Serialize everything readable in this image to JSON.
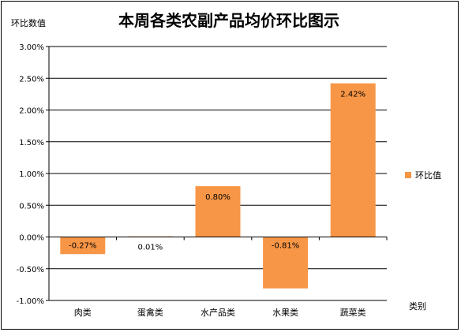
{
  "chart_data": {
    "type": "bar",
    "title": "本周各类农副产品均价环比图示",
    "ylabel": "环比数值",
    "xlabel": "类别",
    "categories": [
      "肉类",
      "蛋禽类",
      "水产品类",
      "水果类",
      "蔬菜类"
    ],
    "series": [
      {
        "name": "环比值",
        "values": [
          -0.27,
          0.01,
          0.8,
          -0.81,
          2.42
        ],
        "labels": [
          "-0.27%",
          "0.01%",
          "0.80%",
          "-0.81%",
          "2.42%"
        ]
      }
    ],
    "ylim": [
      -1.0,
      3.0
    ],
    "yticks": [
      -1.0,
      -0.5,
      0.0,
      0.5,
      1.0,
      1.5,
      2.0,
      2.5,
      3.0
    ],
    "ytick_labels": [
      "-1.00%",
      "-0.50%",
      "0.00%",
      "0.50%",
      "1.00%",
      "1.50%",
      "2.00%",
      "2.50%",
      "3.00%"
    ],
    "grid": true,
    "legend": "right",
    "colors": {
      "bar": "#F79646",
      "grid": "#000000",
      "background": "#FFFFFF"
    }
  }
}
